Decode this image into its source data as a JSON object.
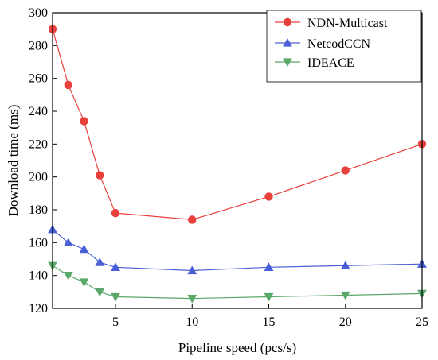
{
  "chart_data": {
    "type": "line",
    "xlabel": "Pipeline speed (pcs/s)",
    "ylabel": "Download time (ms)",
    "xlim": [
      1,
      25
    ],
    "ylim": [
      120,
      300
    ],
    "x_scale": "piecewise",
    "x_ticks": [
      5,
      10,
      15,
      20,
      25
    ],
    "y_ticks": [
      120,
      140,
      160,
      180,
      200,
      220,
      240,
      260,
      280,
      300
    ],
    "legend": "top-right",
    "grid": false,
    "x": [
      1,
      2,
      3,
      4,
      5,
      10,
      15,
      20,
      25
    ],
    "series": [
      {
        "name": "NDN-Multicast",
        "marker": "circle",
        "color": "#e8413c",
        "values": [
          290,
          256,
          234,
          201,
          178,
          174,
          188,
          204,
          220
        ]
      },
      {
        "name": "NetcodCCN",
        "marker": "triangle-up",
        "color": "#4a5fd6",
        "values": [
          168,
          160,
          156,
          148,
          145,
          143,
          145,
          146,
          147
        ]
      },
      {
        "name": "IDEACE",
        "marker": "triangle-down",
        "color": "#5aa86a",
        "values": [
          146,
          140,
          136,
          130,
          127,
          126,
          127,
          128,
          129
        ]
      }
    ]
  }
}
